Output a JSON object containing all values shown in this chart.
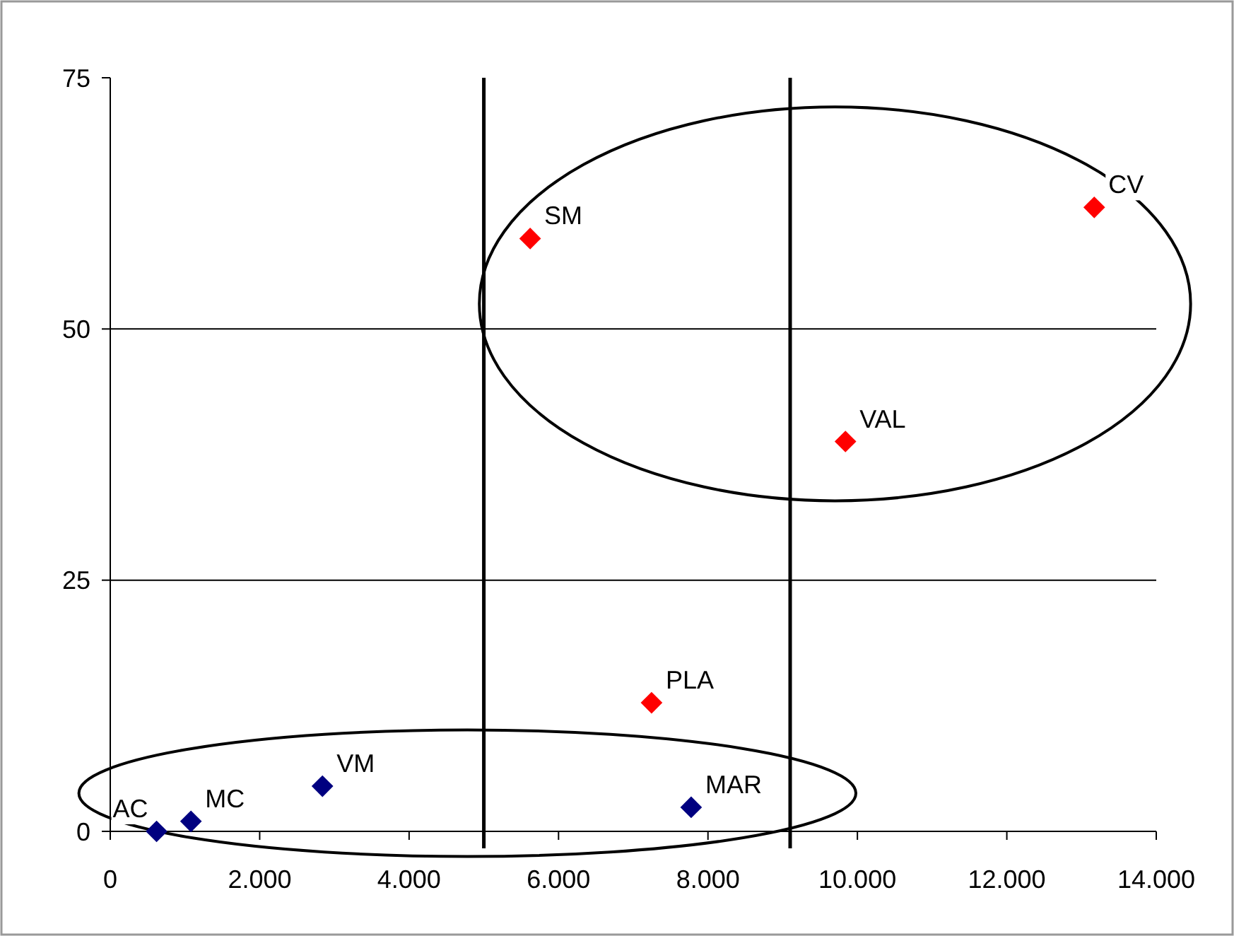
{
  "chart_data": {
    "type": "scatter",
    "marker": "diamond",
    "grid": "y",
    "xlim": [
      0,
      14000
    ],
    "xticks": [
      0,
      {
        "value": 2000,
        "label": "2.000"
      },
      {
        "value": 4000,
        "label": "4.000"
      },
      {
        "value": 6000,
        "label": "6.000"
      },
      {
        "value": 8000,
        "label": "8.000"
      },
      {
        "value": 10000,
        "label": "10.000"
      },
      {
        "value": 12000,
        "label": "12.000"
      },
      {
        "value": 14000,
        "label": "14.000"
      }
    ],
    "ylim": [
      0,
      75
    ],
    "yticks": [
      0,
      25,
      50,
      75
    ],
    "series": [
      {
        "color": "#000080",
        "x": [
          620,
          1080,
          2840,
          7775
        ],
        "values": [
          0,
          1,
          4.5,
          2.4
        ]
      },
      {
        "color": "#ff0000",
        "x": [
          7245,
          9840,
          5620,
          13170
        ],
        "values": [
          12.8,
          38.8,
          59,
          62.1
        ]
      }
    ],
    "ref_lines": [
      {
        "axis": "x",
        "value": 5000
      },
      {
        "axis": "x",
        "value": 9100
      }
    ],
    "annotations": [
      {
        "text": "AC",
        "x": 620,
        "y": 0
      },
      {
        "text": "MC",
        "x": 1080,
        "y": 1
      },
      {
        "text": "VM",
        "x": 2840,
        "y": 4.5
      },
      {
        "text": "MAR",
        "x": 7775,
        "y": 2.4
      },
      {
        "text": "PLA",
        "x": 7245,
        "y": 12.8
      },
      {
        "text": "VAL",
        "x": 9840,
        "y": 38.8
      },
      {
        "text": "SM",
        "x": 5620,
        "y": 59
      },
      {
        "text": "CV",
        "x": 13170,
        "y": 62.1
      }
    ]
  }
}
